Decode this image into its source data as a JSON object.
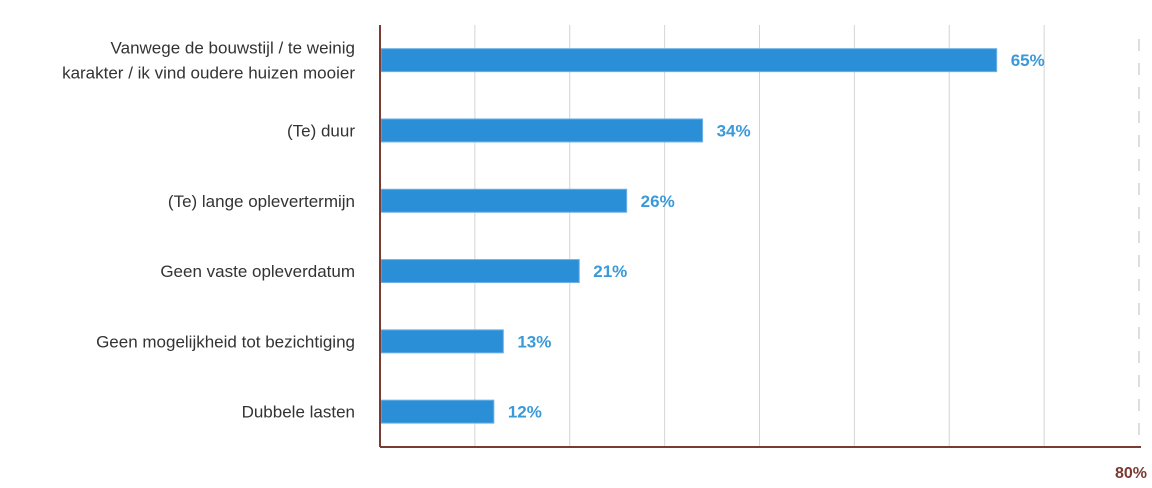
{
  "colors": {
    "bar": "#2b8fd8",
    "bar_border": "#6fb2e6",
    "value_label": "#3a9ad9",
    "axis": "#7a3b33",
    "grid": "#d4d4d4",
    "category_text": "#333333"
  },
  "chart_data": {
    "type": "bar",
    "orientation": "horizontal",
    "categories": [
      "Vanwege de bouwstijl / te weinig karakter / ik vind oudere huizen mooier",
      "(Te) duur",
      "(Te) lange oplevertermijn",
      "Geen vaste opleverdatum",
      "Geen mogelijkheid tot bezichtiging",
      "Dubbele lasten"
    ],
    "category_lines": [
      [
        "Vanwege de bouwstijl / te weinig",
        "karakter / ik vind oudere huizen mooier"
      ],
      [
        "(Te) duur"
      ],
      [
        "(Te) lange oplevertermijn"
      ],
      [
        "Geen vaste opleverdatum"
      ],
      [
        "Geen mogelijkheid tot bezichtiging"
      ],
      [
        "Dubbele lasten"
      ]
    ],
    "values": [
      65,
      34,
      26,
      21,
      13,
      12
    ],
    "value_labels": [
      "65%",
      "34%",
      "26%",
      "21%",
      "13%",
      "12%"
    ],
    "xlim": [
      0,
      80
    ],
    "x_gridline_step": 10,
    "x_tick_labels": [
      {
        "value": 80,
        "label": "80%"
      }
    ],
    "grid": true,
    "legend": "none"
  }
}
